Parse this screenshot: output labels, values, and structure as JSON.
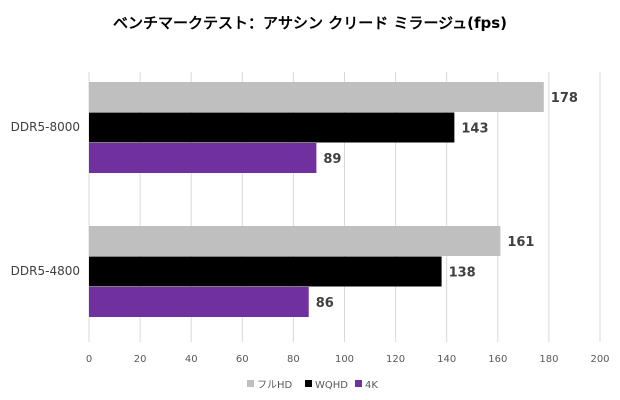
{
  "chart_data": {
    "type": "bar",
    "orientation": "horizontal",
    "title": "ベンチマークテスト：アサシン クリード ミラージュ(fps)",
    "categories": [
      "DDR5-8000",
      "DDR5-4800"
    ],
    "series": [
      {
        "name": "フルHD",
        "color": "#bfbfbf",
        "values": [
          178,
          161
        ]
      },
      {
        "name": "WQHD",
        "color": "#000000",
        "values": [
          143,
          138
        ]
      },
      {
        "name": "4K",
        "color": "#7030a0",
        "values": [
          89,
          86
        ]
      }
    ],
    "xlim": [
      0,
      200
    ],
    "xticks": [
      0,
      20,
      40,
      60,
      80,
      100,
      120,
      140,
      160,
      180,
      200
    ],
    "grid": true,
    "legend": "bottom",
    "xlabel": "",
    "ylabel": ""
  }
}
